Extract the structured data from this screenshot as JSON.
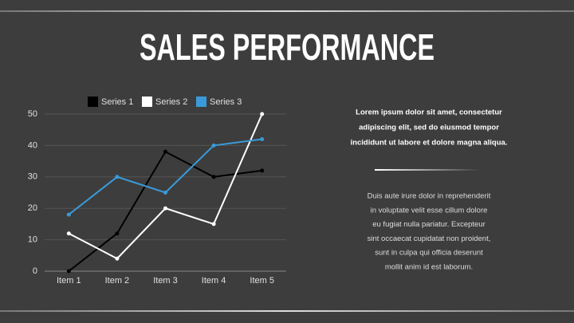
{
  "slide": {
    "title": "SALES PERFORMANCE",
    "summary": [
      "Lorem ipsum dolor sit amet, consectetur",
      "adipiscing elit, sed do eiusmod tempor",
      "incididunt ut labore et dolore magna aliqua."
    ],
    "body": [
      "Duis aute irure dolor in reprehenderit",
      "in voluptate velit esse cillum dolore",
      "eu fugiat nulla pariatur. Excepteur",
      "sint occaecat cupidatat non proident,",
      "sunt in culpa qui officia deserunt",
      "mollit anim id est laborum."
    ]
  },
  "chart_data": {
    "type": "line",
    "categories": [
      "Item 1",
      "Item 2",
      "Item 3",
      "Item 4",
      "Item 5"
    ],
    "series": [
      {
        "name": "Series 1",
        "color": "#000000",
        "values": [
          0,
          12,
          38,
          30,
          32
        ]
      },
      {
        "name": "Series 2",
        "color": "#ffffff",
        "values": [
          12,
          4,
          20,
          15,
          50
        ]
      },
      {
        "name": "Series 3",
        "color": "#3a9ad9",
        "values": [
          18,
          30,
          25,
          40,
          42
        ]
      }
    ],
    "ylim": [
      0,
      50
    ],
    "yticks": [
      0,
      10,
      20,
      30,
      40,
      50
    ],
    "grid": true,
    "legend": "top"
  }
}
